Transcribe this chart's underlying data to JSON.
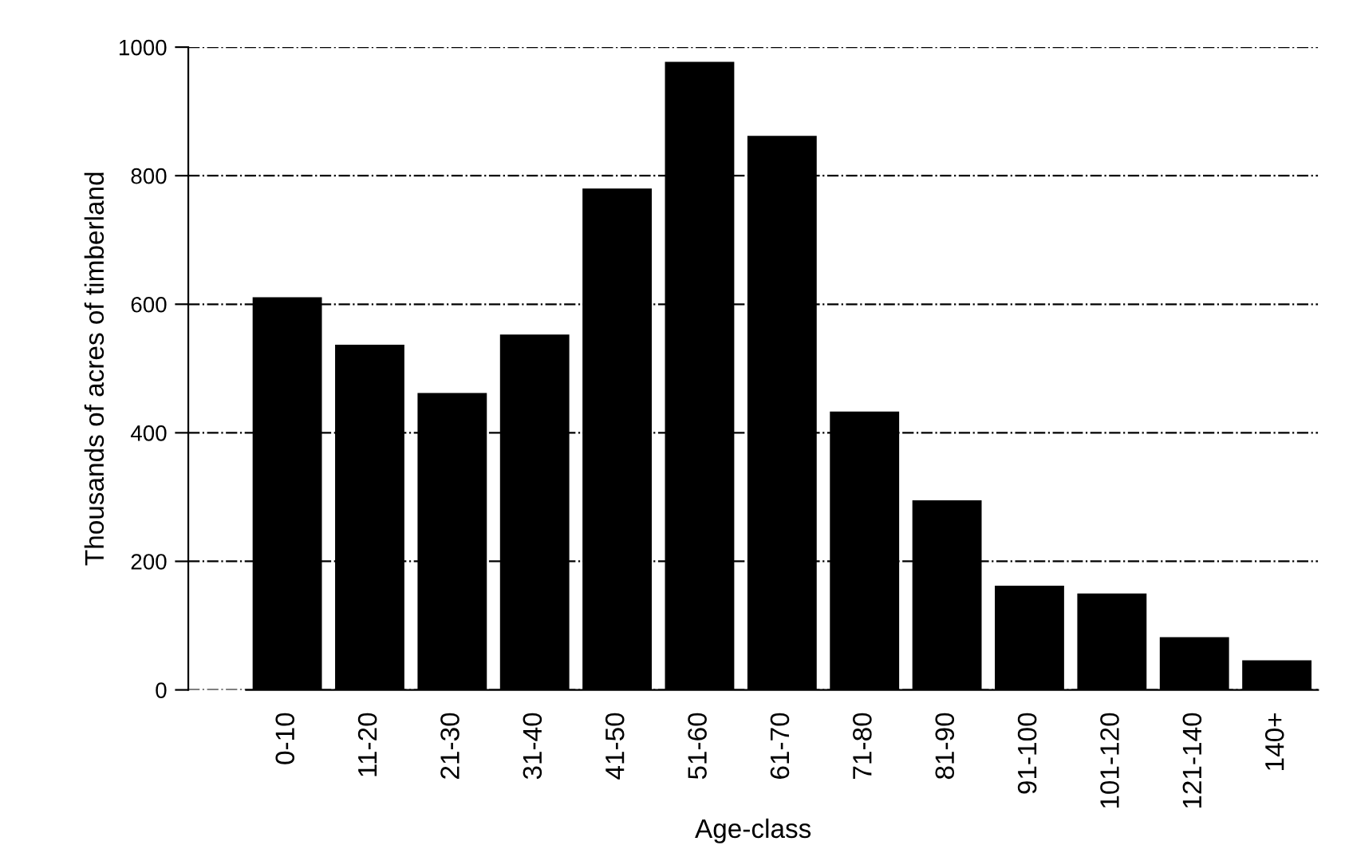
{
  "chart_data": {
    "type": "bar",
    "xlabel": "Age-class",
    "ylabel": "Thousands of acres of timberland",
    "categories": [
      "0-10",
      "11-20",
      "21-30",
      "31-40",
      "41-50",
      "51-60",
      "61-70",
      "71-80",
      "81-90",
      "91-100",
      "101-120",
      "121-140",
      "140+"
    ],
    "values": [
      611,
      537,
      462,
      553,
      780,
      977,
      862,
      433,
      295,
      162,
      150,
      82,
      46
    ],
    "color": "#000000",
    "ylim": [
      0,
      1000
    ],
    "yticks": [
      0,
      200,
      400,
      600,
      800,
      1000
    ],
    "grid": "y"
  }
}
